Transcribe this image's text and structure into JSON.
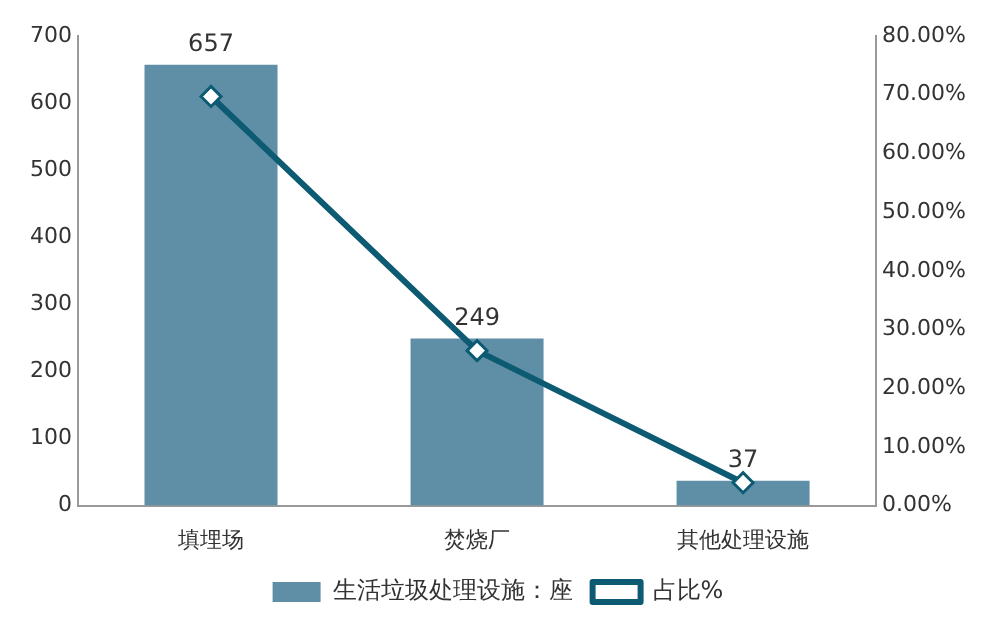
{
  "chart_data": {
    "type": "bar",
    "categories": [
      "填埋场",
      "焚烧厂",
      "其他处理设施"
    ],
    "series": [
      {
        "name": "生活垃圾处理设施：座",
        "color": "#5f8fa6",
        "values": [
          657,
          249,
          37
        ],
        "value_labels": [
          "657",
          "249",
          "37"
        ]
      },
      {
        "name": "占比%",
        "type": "line",
        "axis": "y2",
        "color": "#0d5a73",
        "values": [
          69.7,
          26.4,
          3.9
        ],
        "marker": "diamond",
        "line_style": "solid"
      }
    ],
    "ylim": [
      0,
      700
    ],
    "yticks": [
      0,
      100,
      200,
      300,
      400,
      500,
      600,
      700
    ],
    "y2lim": [
      0,
      80
    ],
    "y2ticks": [
      {
        "value": 0,
        "label": "0.00%"
      },
      {
        "value": 10,
        "label": "10.00%"
      },
      {
        "value": 20,
        "label": "20.00%"
      },
      {
        "value": 30,
        "label": "30.00%"
      },
      {
        "value": 40,
        "label": "40.00%"
      },
      {
        "value": 50,
        "label": "50.00%"
      },
      {
        "value": 60,
        "label": "60.00%"
      },
      {
        "value": 70,
        "label": "70.00%"
      },
      {
        "value": 80,
        "label": "80.00%"
      }
    ],
    "grid": false,
    "legend": "bottom"
  }
}
